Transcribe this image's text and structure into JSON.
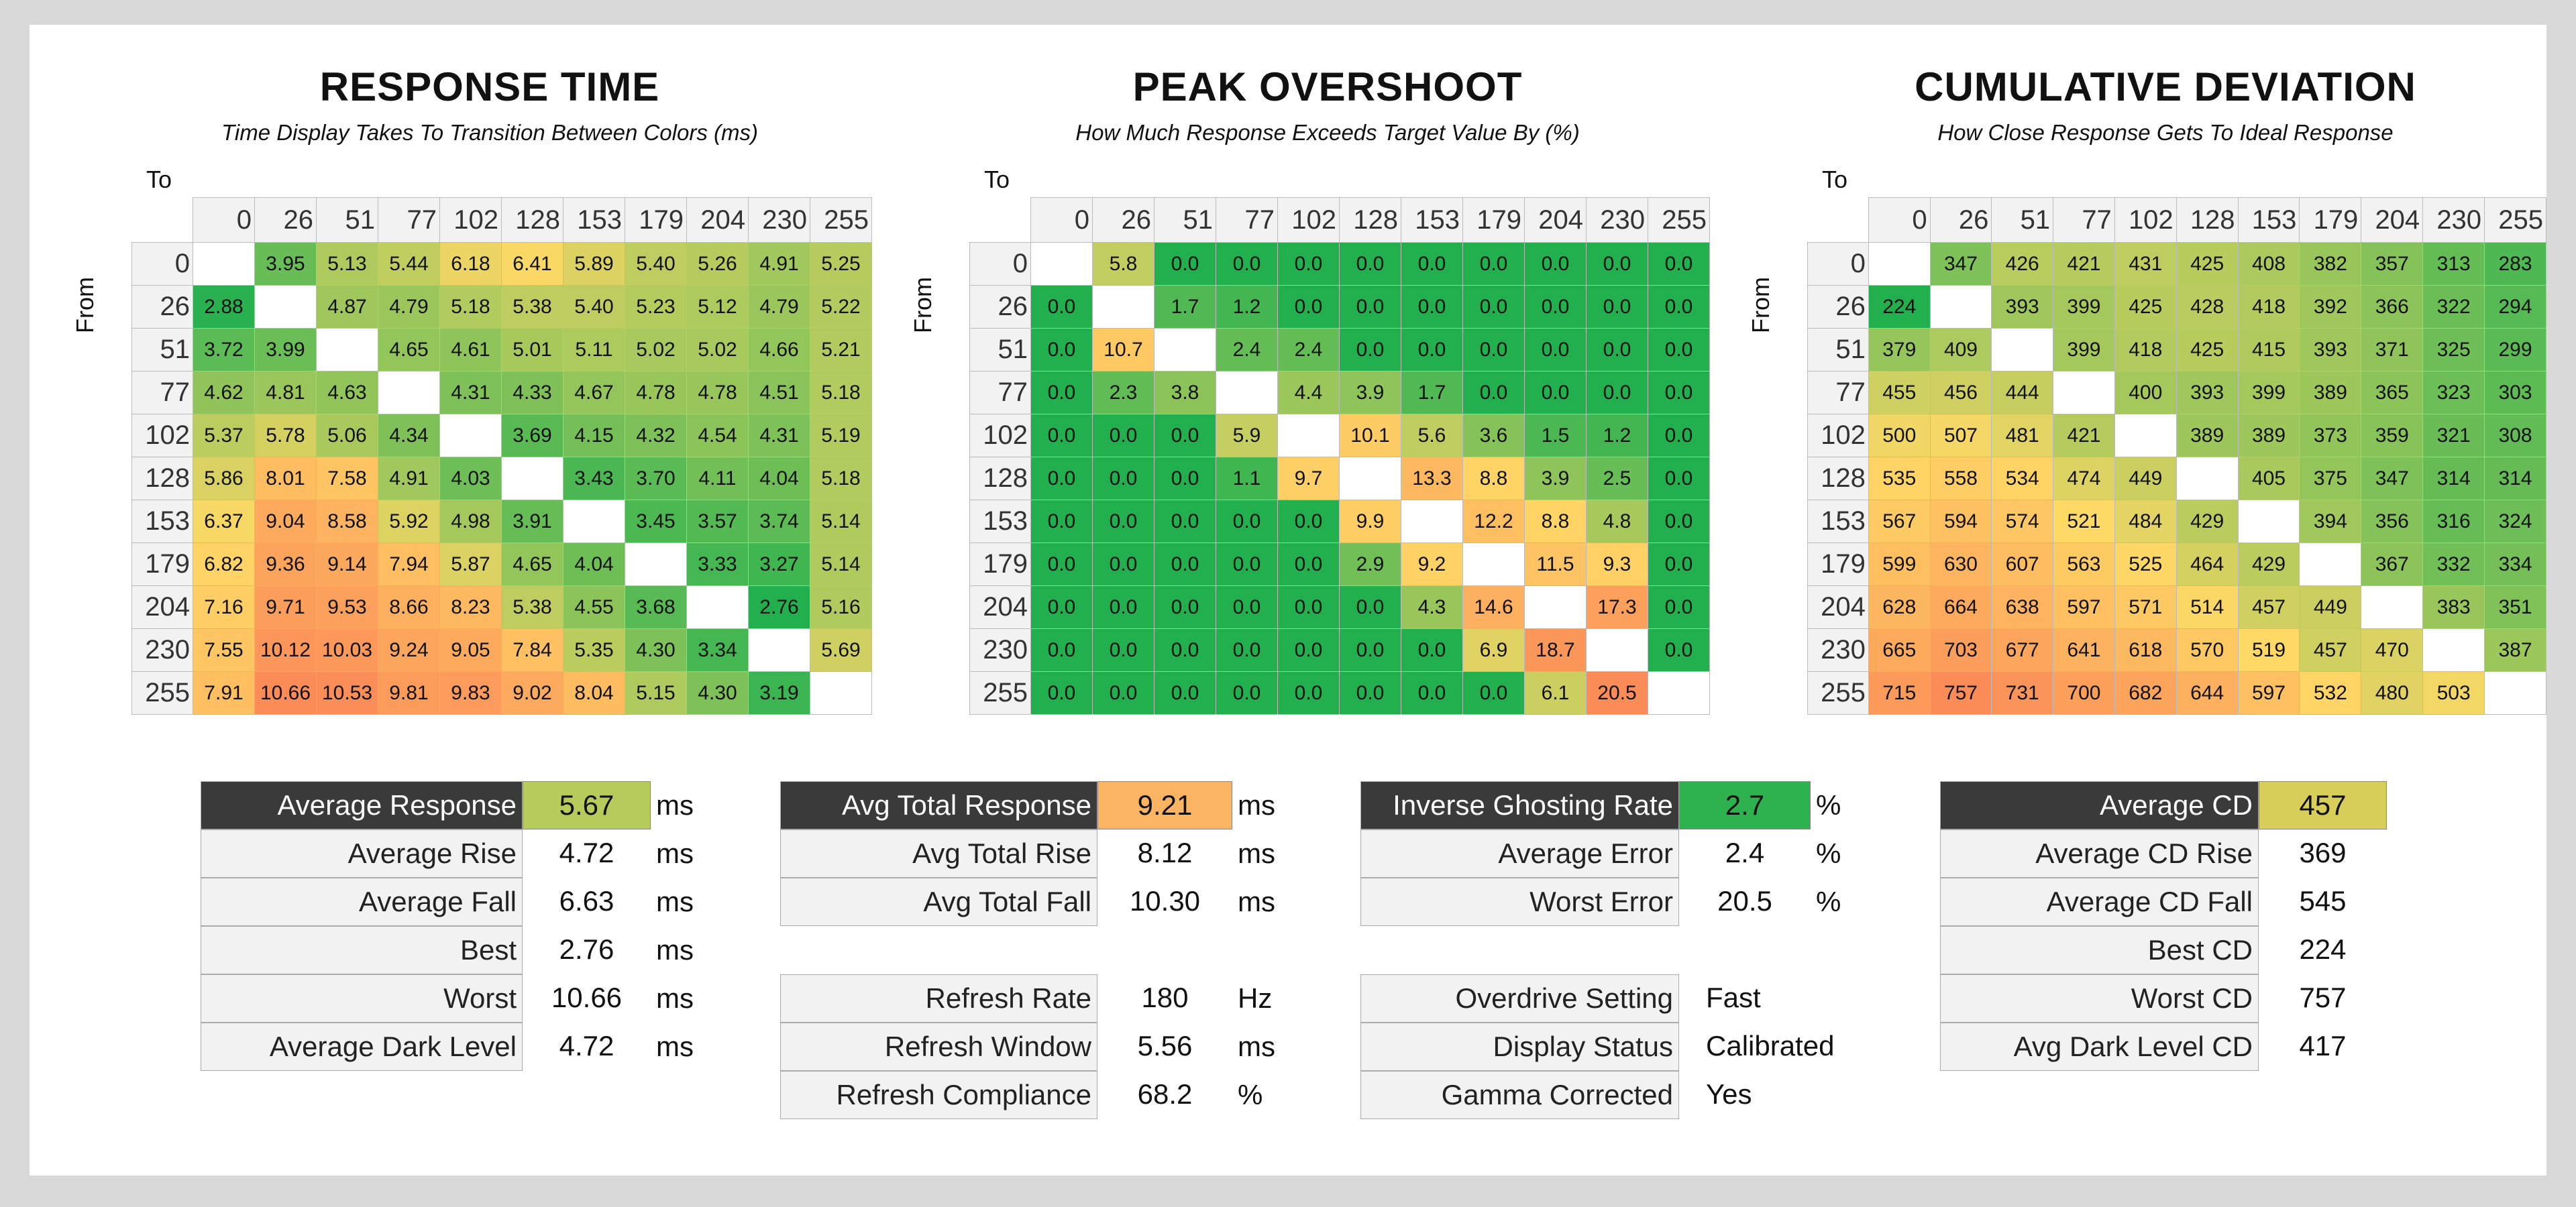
{
  "headers": [
    "0",
    "26",
    "51",
    "77",
    "102",
    "128",
    "153",
    "179",
    "204",
    "230",
    "255"
  ],
  "to_label": "To",
  "from_label": "From",
  "colors": {
    "green": "#22b04e",
    "yellow": "#ffd966",
    "orange": "#fb8c58",
    "dark": "#3a3a3a"
  },
  "response_time": {
    "title": "RESPONSE TIME",
    "subtitle": "Time Display Takes To Transition Between Colors (ms)",
    "rows": [
      [
        null,
        "3.95",
        "5.13",
        "5.44",
        "6.18",
        "6.41",
        "5.89",
        "5.40",
        "5.26",
        "4.91",
        "5.25"
      ],
      [
        "2.88",
        null,
        "4.87",
        "4.79",
        "5.18",
        "5.38",
        "5.40",
        "5.23",
        "5.12",
        "4.79",
        "5.22"
      ],
      [
        "3.72",
        "3.99",
        null,
        "4.65",
        "4.61",
        "5.01",
        "5.11",
        "5.02",
        "5.02",
        "4.66",
        "5.21"
      ],
      [
        "4.62",
        "4.81",
        "4.63",
        null,
        "4.31",
        "4.33",
        "4.67",
        "4.78",
        "4.78",
        "4.51",
        "5.18"
      ],
      [
        "5.37",
        "5.78",
        "5.06",
        "4.34",
        null,
        "3.69",
        "4.15",
        "4.32",
        "4.54",
        "4.31",
        "5.19"
      ],
      [
        "5.86",
        "8.01",
        "7.58",
        "4.91",
        "4.03",
        null,
        "3.43",
        "3.70",
        "4.11",
        "4.04",
        "5.18"
      ],
      [
        "6.37",
        "9.04",
        "8.58",
        "5.92",
        "4.98",
        "3.91",
        null,
        "3.45",
        "3.57",
        "3.74",
        "5.14"
      ],
      [
        "6.82",
        "9.36",
        "9.14",
        "7.94",
        "5.87",
        "4.65",
        "4.04",
        null,
        "3.33",
        "3.27",
        "5.14"
      ],
      [
        "7.16",
        "9.71",
        "9.53",
        "8.66",
        "8.23",
        "5.38",
        "4.55",
        "3.68",
        null,
        "2.76",
        "5.16"
      ],
      [
        "7.55",
        "10.12",
        "10.03",
        "9.24",
        "9.05",
        "7.84",
        "5.35",
        "4.30",
        "3.34",
        null,
        "5.69"
      ],
      [
        "7.91",
        "10.66",
        "10.53",
        "9.81",
        "9.83",
        "9.02",
        "8.04",
        "5.15",
        "4.30",
        "3.19",
        null
      ]
    ]
  },
  "peak_overshoot": {
    "title": "PEAK OVERSHOOT",
    "subtitle": "How Much Response Exceeds Target Value By (%)",
    "rows": [
      [
        null,
        "5.8",
        "0.0",
        "0.0",
        "0.0",
        "0.0",
        "0.0",
        "0.0",
        "0.0",
        "0.0",
        "0.0"
      ],
      [
        "0.0",
        null,
        "1.7",
        "1.2",
        "0.0",
        "0.0",
        "0.0",
        "0.0",
        "0.0",
        "0.0",
        "0.0"
      ],
      [
        "0.0",
        "10.7",
        null,
        "2.4",
        "2.4",
        "0.0",
        "0.0",
        "0.0",
        "0.0",
        "0.0",
        "0.0"
      ],
      [
        "0.0",
        "2.3",
        "3.8",
        null,
        "4.4",
        "3.9",
        "1.7",
        "0.0",
        "0.0",
        "0.0",
        "0.0"
      ],
      [
        "0.0",
        "0.0",
        "0.0",
        "5.9",
        null,
        "10.1",
        "5.6",
        "3.6",
        "1.5",
        "1.2",
        "0.0"
      ],
      [
        "0.0",
        "0.0",
        "0.0",
        "1.1",
        "9.7",
        null,
        "13.3",
        "8.8",
        "3.9",
        "2.5",
        "0.0"
      ],
      [
        "0.0",
        "0.0",
        "0.0",
        "0.0",
        "0.0",
        "9.9",
        null,
        "12.2",
        "8.8",
        "4.8",
        "0.0"
      ],
      [
        "0.0",
        "0.0",
        "0.0",
        "0.0",
        "0.0",
        "2.9",
        "9.2",
        null,
        "11.5",
        "9.3",
        "0.0"
      ],
      [
        "0.0",
        "0.0",
        "0.0",
        "0.0",
        "0.0",
        "0.0",
        "4.3",
        "14.6",
        null,
        "17.3",
        "0.0"
      ],
      [
        "0.0",
        "0.0",
        "0.0",
        "0.0",
        "0.0",
        "0.0",
        "0.0",
        "6.9",
        "18.7",
        null,
        "0.0"
      ],
      [
        "0.0",
        "0.0",
        "0.0",
        "0.0",
        "0.0",
        "0.0",
        "0.0",
        "0.0",
        "6.1",
        "20.5",
        null
      ]
    ]
  },
  "cumulative_deviation": {
    "title": "CUMULATIVE DEVIATION",
    "subtitle": "How Close Response Gets To Ideal Response",
    "rows": [
      [
        null,
        "347",
        "426",
        "421",
        "431",
        "425",
        "408",
        "382",
        "357",
        "313",
        "283"
      ],
      [
        "224",
        null,
        "393",
        "399",
        "425",
        "428",
        "418",
        "392",
        "366",
        "322",
        "294"
      ],
      [
        "379",
        "409",
        null,
        "399",
        "418",
        "425",
        "415",
        "393",
        "371",
        "325",
        "299"
      ],
      [
        "455",
        "456",
        "444",
        null,
        "400",
        "393",
        "399",
        "389",
        "365",
        "323",
        "303"
      ],
      [
        "500",
        "507",
        "481",
        "421",
        null,
        "389",
        "389",
        "373",
        "359",
        "321",
        "308"
      ],
      [
        "535",
        "558",
        "534",
        "474",
        "449",
        null,
        "405",
        "375",
        "347",
        "314",
        "314"
      ],
      [
        "567",
        "594",
        "574",
        "521",
        "484",
        "429",
        null,
        "394",
        "356",
        "316",
        "324"
      ],
      [
        "599",
        "630",
        "607",
        "563",
        "525",
        "464",
        "429",
        null,
        "367",
        "332",
        "334"
      ],
      [
        "628",
        "664",
        "638",
        "597",
        "571",
        "514",
        "457",
        "449",
        null,
        "383",
        "351"
      ],
      [
        "665",
        "703",
        "677",
        "641",
        "618",
        "570",
        "519",
        "457",
        "470",
        null,
        "387"
      ],
      [
        "715",
        "757",
        "731",
        "700",
        "682",
        "644",
        "597",
        "532",
        "480",
        "503",
        null
      ]
    ]
  },
  "stats": [
    {
      "rows": [
        {
          "label": "Average Response",
          "value": "5.67",
          "unit": "ms",
          "head": true,
          "color": "#b5cb5b"
        },
        {
          "label": "Average Rise",
          "value": "4.72",
          "unit": "ms"
        },
        {
          "label": "Average Fall",
          "value": "6.63",
          "unit": "ms"
        },
        {
          "label": "Best",
          "value": "2.76",
          "unit": "ms"
        },
        {
          "label": "Worst",
          "value": "10.66",
          "unit": "ms"
        },
        {
          "label": "Average Dark Level",
          "value": "4.72",
          "unit": "ms"
        }
      ]
    },
    {
      "rows": [
        {
          "label": "Avg Total Response",
          "value": "9.21",
          "unit": "ms",
          "head": true,
          "color": "#fbb461"
        },
        {
          "label": "Avg Total Rise",
          "value": "8.12",
          "unit": "ms"
        },
        {
          "label": "Avg Total Fall",
          "value": "10.30",
          "unit": "ms"
        },
        {
          "gap": true
        },
        {
          "label": "Refresh Rate",
          "value": "180",
          "unit": "Hz"
        },
        {
          "label": "Refresh Window",
          "value": "5.56",
          "unit": "ms"
        },
        {
          "label": "Refresh Compliance",
          "value": "68.2",
          "unit": "%"
        }
      ]
    },
    {
      "rows": [
        {
          "label": "Inverse Ghosting Rate",
          "value": "2.7",
          "unit": "%",
          "head": true,
          "color": "#2eb250"
        },
        {
          "label": "Average Error",
          "value": "2.4",
          "unit": "%"
        },
        {
          "label": "Worst Error",
          "value": "20.5",
          "unit": "%"
        },
        {
          "gap": true
        },
        {
          "label": "Overdrive Setting",
          "value": "Fast",
          "unit": "",
          "left": true
        },
        {
          "label": "Display Status",
          "value": "Calibrated",
          "unit": "",
          "left": true
        },
        {
          "label": "Gamma Corrected",
          "value": "Yes",
          "unit": "",
          "left": true
        }
      ]
    },
    {
      "rows": [
        {
          "label": "Average CD",
          "value": "457",
          "unit": "",
          "head": true,
          "color": "#d8cf5a"
        },
        {
          "label": "Average CD Rise",
          "value": "369",
          "unit": ""
        },
        {
          "label": "Average CD Fall",
          "value": "545",
          "unit": ""
        },
        {
          "label": "Best CD",
          "value": "224",
          "unit": ""
        },
        {
          "label": "Worst CD",
          "value": "757",
          "unit": ""
        },
        {
          "label": "Avg Dark Level CD",
          "value": "417",
          "unit": ""
        }
      ]
    }
  ]
}
